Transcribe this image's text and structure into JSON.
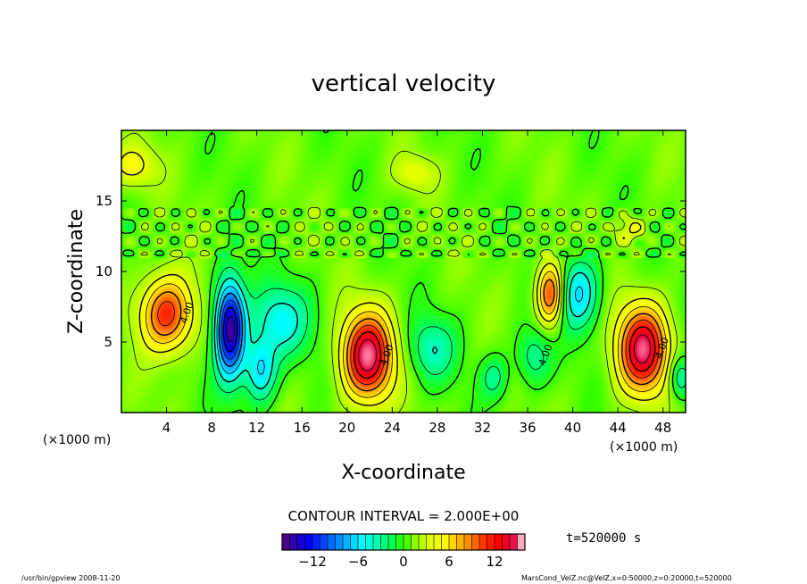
{
  "chart_data": {
    "type": "heatmap",
    "title": "vertical velocity",
    "xlabel": "X-coordinate",
    "ylabel": "Z-coordinate",
    "x_unit_left": "(×1000 m)",
    "x_unit_right": "(×1000 m)",
    "xlim": [
      0,
      50
    ],
    "ylim": [
      0,
      20
    ],
    "x_ticks": [
      4,
      8,
      12,
      16,
      20,
      24,
      28,
      32,
      36,
      40,
      44,
      48
    ],
    "y_ticks": [
      5,
      10,
      15
    ],
    "contour_interval_text": "CONTOUR INTERVAL = 2.000E+00",
    "time_text": "t=520000 s",
    "colorbar": {
      "range": [
        -16,
        16
      ],
      "ticks": [
        -12,
        -6,
        0,
        6,
        12
      ],
      "colors": [
        "#5a0078",
        "#2800b4",
        "#0000ff",
        "#0040ff",
        "#0080ff",
        "#00c0ff",
        "#00ffff",
        "#00ffb0",
        "#00ff60",
        "#30ff00",
        "#a0ff00",
        "#e0ff00",
        "#ffff00",
        "#ffc000",
        "#ff8000",
        "#ff3000",
        "#ff0000",
        "#e00040",
        "#ff80a0"
      ]
    },
    "features": [
      {
        "x": 4.0,
        "z": 7.0,
        "value": 10.5,
        "sx": 2.3,
        "sz": 2.6,
        "label": "4.00"
      },
      {
        "x": 9.6,
        "z": 6.0,
        "value": -16.0,
        "sx": 1.3,
        "sz": 3.4,
        "label": ""
      },
      {
        "x": 12.3,
        "z": 3.0,
        "value": -7.0,
        "sx": 1.4,
        "sz": 2.2,
        "label": ""
      },
      {
        "x": 14.0,
        "z": 6.5,
        "value": -6.0,
        "sx": 2.5,
        "sz": 2.5,
        "label": ""
      },
      {
        "x": 21.8,
        "z": 4.0,
        "value": 14.5,
        "sx": 2.2,
        "sz": 3.0,
        "label": "4.00"
      },
      {
        "x": 27.5,
        "z": 4.5,
        "value": -4.5,
        "sx": 2.0,
        "sz": 2.2,
        "label": ""
      },
      {
        "x": 33.0,
        "z": 2.5,
        "value": -3.5,
        "sx": 1.2,
        "sz": 1.5,
        "label": ""
      },
      {
        "x": 36.5,
        "z": 4.0,
        "value": -4.0,
        "sx": 1.5,
        "sz": 2.0,
        "label": "4.00"
      },
      {
        "x": 38.0,
        "z": 8.5,
        "value": 10.0,
        "sx": 1.2,
        "sz": 2.2,
        "label": ""
      },
      {
        "x": 40.5,
        "z": 8.5,
        "value": -7.0,
        "sx": 1.8,
        "sz": 2.5,
        "label": ""
      },
      {
        "x": 46.2,
        "z": 4.5,
        "value": 14.0,
        "sx": 2.2,
        "sz": 3.0,
        "label": "4.00"
      },
      {
        "x": 49.5,
        "z": 2.5,
        "value": -5.0,
        "sx": 1.0,
        "sz": 1.5,
        "label": ""
      },
      {
        "x": 1.0,
        "z": 17.5,
        "value": 4.0,
        "sx": 2.0,
        "sz": 1.5,
        "label": ""
      },
      {
        "x": 45.0,
        "z": 13.0,
        "value": 3.5,
        "sx": 1.5,
        "sz": 1.0,
        "label": ""
      },
      {
        "x": 26.0,
        "z": 17.0,
        "value": 3.0,
        "sx": 1.8,
        "sz": 1.2,
        "label": ""
      }
    ],
    "grid": false,
    "legend": "bottom"
  },
  "footer": {
    "left": "/usr/bin/gpview 2008-11-20",
    "right": "MarsCond_VelZ.nc@VelZ,x=0:50000,z=0:20000,t=520000"
  }
}
